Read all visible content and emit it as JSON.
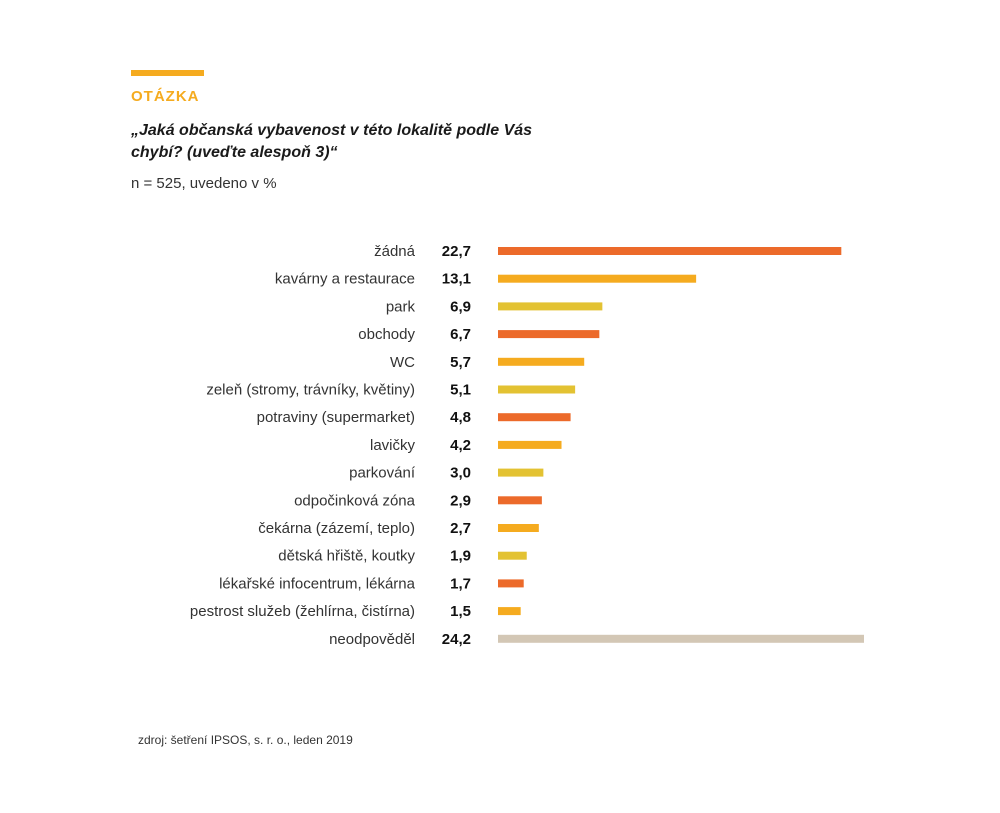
{
  "header": {
    "eyebrow": "OTÁZKA",
    "question": "„Jaká občanská vybavenost v této lokalitě podle Vás chybí? (uveďte alespoň 3)“",
    "sample_note": "n = 525, uvedeno v %"
  },
  "colors": {
    "accent": "#f5ab1f",
    "orange_red": "#ec6a2a",
    "amber": "#f5ab1f",
    "mustard": "#e3c232",
    "beige": "#d3c7b5",
    "label_text": "#333333",
    "value_text": "#111111"
  },
  "chart_data": {
    "type": "bar",
    "orientation": "horizontal",
    "categories": [
      "žádná",
      "kavárny a restaurace",
      "park",
      "obchody",
      "WC",
      "zeleň (stromy, trávníky, květiny)",
      "potraviny (supermarket)",
      "lavičky",
      "parkování",
      "odpočinková zóna",
      "čekárna (zázemí, teplo)",
      "dětská hřiště, koutky",
      "lékařské infocentrum, lékárna",
      "pestrost služeb (žehlírna, čistírna)",
      "neodpověděl"
    ],
    "values": [
      22.7,
      13.1,
      6.9,
      6.7,
      5.7,
      5.1,
      4.8,
      4.2,
      3.0,
      2.9,
      2.7,
      1.9,
      1.7,
      1.5,
      24.2
    ],
    "value_labels": [
      "22,7",
      "13,1",
      "6,9",
      "6,7",
      "5,7",
      "5,1",
      "4,8",
      "4,2",
      "3,0",
      "2,9",
      "2,7",
      "1,9",
      "1,7",
      "1,5",
      "24,2"
    ],
    "bar_colors": [
      "#ec6a2a",
      "#f5ab1f",
      "#e3c232",
      "#ec6a2a",
      "#f5ab1f",
      "#e3c232",
      "#ec6a2a",
      "#f5ab1f",
      "#e3c232",
      "#ec6a2a",
      "#f5ab1f",
      "#e3c232",
      "#ec6a2a",
      "#f5ab1f",
      "#d3c7b5"
    ],
    "xlim": [
      0,
      24.2
    ],
    "grid": false,
    "legend": "none"
  },
  "footer": {
    "source": "zdroj: šetření IPSOS, s. r. o., leden 2019"
  }
}
